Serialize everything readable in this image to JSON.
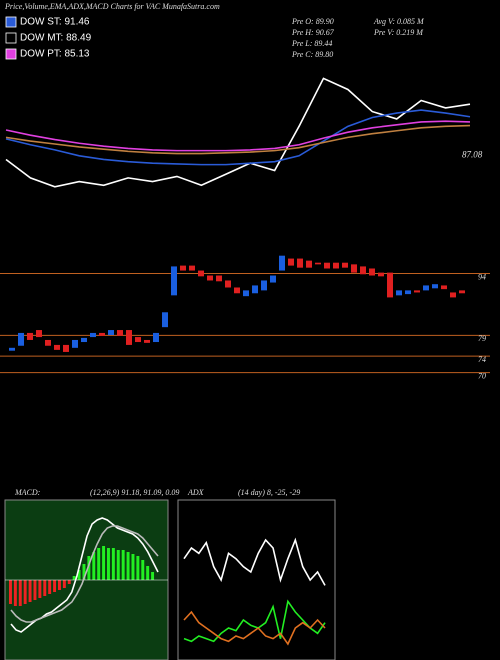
{
  "header": {
    "title": "Price,Volume,EMA,ADX,MACD Charts for VAC MunafaSutra.com"
  },
  "legend": [
    {
      "label": "DOW ST: 91.46",
      "color": "#2a5bd7"
    },
    {
      "label": "DOW MT: 88.49",
      "color": "#000000"
    },
    {
      "label": "DOW PT: 85.13",
      "color": "#e040e0"
    }
  ],
  "info": [
    "Pre O: 89.90",
    "Pre H: 90.67",
    "Pre L: 89.44",
    "Pre C: 89.80",
    "Avg V: 0.085 M",
    "Pre V: 0.219 M"
  ],
  "chart_data": [
    {
      "type": "line",
      "ylim": [
        81,
        100
      ],
      "price_label": 87.08,
      "series": [
        {
          "color": "#ffffff",
          "values": [
            86.5,
            84.0,
            82.8,
            83.5,
            83.0,
            84.0,
            83.5,
            84.2,
            83.0,
            84.5,
            86.0,
            85.0,
            91.0,
            97.5,
            96.0,
            93.0,
            92.0,
            94.5,
            93.5,
            94.0
          ]
        },
        {
          "color": "#2a5bd7",
          "values": [
            89.3,
            88.5,
            87.8,
            87.0,
            86.5,
            86.2,
            86.0,
            85.9,
            85.8,
            85.8,
            86.0,
            86.2,
            87.0,
            89.0,
            91.0,
            92.2,
            92.8,
            93.2,
            92.8,
            92.3
          ]
        },
        {
          "color": "#e040e0",
          "values": [
            90.5,
            89.8,
            89.2,
            88.7,
            88.3,
            88.0,
            87.8,
            87.7,
            87.7,
            87.7,
            87.8,
            88.0,
            88.5,
            89.4,
            90.2,
            90.8,
            91.2,
            91.6,
            91.7,
            91.6
          ]
        },
        {
          "color": "#c08040",
          "values": [
            89.5,
            89.0,
            88.6,
            88.2,
            87.9,
            87.6,
            87.4,
            87.3,
            87.3,
            87.4,
            87.5,
            87.7,
            88.1,
            88.8,
            89.5,
            90.0,
            90.4,
            90.8,
            91.0,
            91.1
          ]
        }
      ]
    },
    {
      "type": "candlestick",
      "ylim": [
        67,
        105
      ],
      "yticks": [
        94,
        79,
        74,
        70
      ],
      "up_color": "#1a5fe0",
      "down_color": "#e02020",
      "level_color": "#c06020",
      "open": [
        75.3,
        76.5,
        79.6,
        80.3,
        77.9,
        76.7,
        76.7,
        76.0,
        77.4,
        78.6,
        79.6,
        79.1,
        80.3,
        80.3,
        78.6,
        77.9,
        77.4,
        81.0,
        88.7,
        95.9,
        95.9,
        94.7,
        93.5,
        93.5,
        92.3,
        90.6,
        88.5,
        89.2,
        89.9,
        91.8,
        94.7,
        97.6,
        97.6,
        97.1,
        96.6,
        96.6,
        96.6,
        96.6,
        96.2,
        95.7,
        95.2,
        94.2,
        94.2,
        88.7,
        89.0,
        89.9,
        89.9,
        90.4,
        91.1,
        89.4,
        89.9
      ],
      "close": [
        76.0,
        79.6,
        77.9,
        78.6,
        76.5,
        75.5,
        75.0,
        77.9,
        78.4,
        79.6,
        78.9,
        80.3,
        78.9,
        76.7,
        77.4,
        77.2,
        79.6,
        84.6,
        95.7,
        94.7,
        94.7,
        93.3,
        92.3,
        92.1,
        90.6,
        89.2,
        89.9,
        91.1,
        92.3,
        93.5,
        98.3,
        95.9,
        95.4,
        95.4,
        96.2,
        95.2,
        95.2,
        95.4,
        94.2,
        93.8,
        93.5,
        93.3,
        88.2,
        89.9,
        89.9,
        89.4,
        91.1,
        91.4,
        90.2,
        88.2,
        89.2
      ]
    },
    {
      "type": "macd",
      "title": "MACD:",
      "subtitle": "(12,26,9) 91.18, 91.09, 0.09",
      "ylim": [
        -4,
        4
      ],
      "positive_color": "#22ee22",
      "negative_color": "#ee2222",
      "background": "#0b3d12",
      "values": [
        -1.2,
        -1.3,
        -1.3,
        -1.2,
        -1.1,
        -1.0,
        -0.9,
        -0.8,
        -0.7,
        -0.6,
        -0.5,
        -0.4,
        -0.2,
        0.2,
        0.5,
        0.8,
        1.2,
        1.4,
        1.6,
        1.7,
        1.6,
        1.6,
        1.5,
        1.5,
        1.4,
        1.3,
        1.2,
        1.0,
        0.7,
        0.4
      ],
      "series": [
        {
          "color": "#ffffff",
          "values": [
            -2.2,
            -2.5,
            -2.6,
            -2.4,
            -2.2,
            -2.0,
            -1.9,
            -1.7,
            -1.6,
            -1.4,
            -1.2,
            -1.0,
            -0.6,
            0.2,
            1.2,
            2.2,
            2.8,
            3.0,
            3.1,
            3.0,
            2.8,
            2.6,
            2.5,
            2.4,
            2.3,
            2.1,
            1.8,
            1.4,
            0.9,
            0.4
          ]
        },
        {
          "color": "#bbbbbb",
          "values": [
            -1.5,
            -1.8,
            -2.0,
            -2.1,
            -2.1,
            -2.0,
            -1.9,
            -1.8,
            -1.7,
            -1.6,
            -1.5,
            -1.3,
            -1.1,
            -0.7,
            -0.2,
            0.5,
            1.2,
            1.8,
            2.3,
            2.6,
            2.7,
            2.7,
            2.6,
            2.5,
            2.4,
            2.3,
            2.1,
            1.8,
            1.5,
            1.2
          ]
        }
      ]
    },
    {
      "type": "line",
      "title": "ADX",
      "subtitle": "(14 day) 8, -25, -29",
      "ylim": [
        0,
        60
      ],
      "background": "#000000",
      "series": [
        {
          "color": "#ffffff",
          "values": [
            38,
            42,
            40,
            44,
            35,
            30,
            40,
            38,
            35,
            33,
            40,
            45,
            42,
            30,
            38,
            45,
            35,
            30,
            33,
            28
          ]
        },
        {
          "color": "#22ee22",
          "values": [
            8,
            7,
            9,
            8,
            7,
            10,
            12,
            11,
            15,
            13,
            12,
            14,
            20,
            8,
            22,
            18,
            15,
            12,
            10,
            14
          ]
        },
        {
          "color": "#e07020",
          "values": [
            15,
            18,
            14,
            12,
            10,
            8,
            7,
            9,
            8,
            10,
            12,
            9,
            8,
            10,
            6,
            12,
            14,
            12,
            15,
            12
          ]
        }
      ]
    }
  ]
}
